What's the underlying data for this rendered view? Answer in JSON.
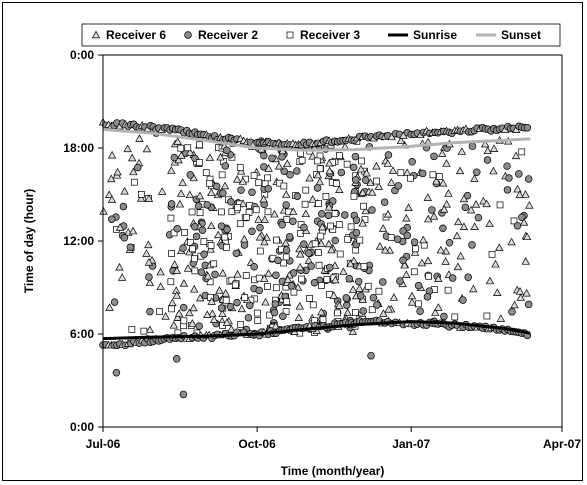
{
  "chart_data": {
    "type": "scatter",
    "title": "",
    "xlabel": "Time (month/year)",
    "ylabel": "Time of day (hour)",
    "x_ticks": [
      "Jul-06",
      "Oct-06",
      "Jan-07",
      "Apr-07"
    ],
    "x_tick_values": [
      0,
      92,
      184,
      274
    ],
    "y_ticks": [
      "0:00",
      "6:00",
      "12:00",
      "18:00",
      "0:00"
    ],
    "y_tick_values": [
      0,
      6,
      12,
      18,
      24
    ],
    "xlim": [
      0,
      274
    ],
    "ylim": [
      0,
      24
    ],
    "grid": false,
    "legend_position": "top",
    "series": [
      {
        "name": "Receiver 6",
        "marker": "triangle",
        "color": "#d9d9d9"
      },
      {
        "name": "Receiver 2",
        "marker": "circle",
        "color": "#8c8c8c"
      },
      {
        "name": "Receiver 3",
        "marker": "square",
        "color": "#ffffff"
      },
      {
        "name": "Sunrise",
        "marker": "line",
        "color": "#000000"
      },
      {
        "name": "Sunset",
        "marker": "line",
        "color": "#b3b3b3"
      }
    ],
    "sunrise": {
      "x": [
        0,
        30,
        60,
        92,
        120,
        150,
        184,
        210,
        240,
        255
      ],
      "y": [
        5.7,
        5.8,
        5.85,
        6.0,
        6.3,
        6.6,
        6.8,
        6.7,
        6.35,
        6.05
      ]
    },
    "sunset": {
      "x": [
        0,
        30,
        60,
        92,
        120,
        150,
        184,
        210,
        240,
        255
      ],
      "y": [
        19.2,
        18.95,
        18.5,
        18.0,
        17.85,
        17.9,
        18.1,
        18.35,
        18.5,
        18.6
      ]
    },
    "receiver_edge_points": {
      "upper": {
        "x": [
          0,
          10,
          20,
          30,
          40,
          50,
          60,
          70,
          80,
          92,
          100,
          110,
          120,
          130,
          140,
          150,
          160,
          170,
          184,
          195,
          205,
          215,
          225,
          235,
          245,
          255
        ],
        "y": [
          19.6,
          19.5,
          19.4,
          19.3,
          19.2,
          19.0,
          18.8,
          18.6,
          18.5,
          18.4,
          18.3,
          18.2,
          18.3,
          18.4,
          18.5,
          18.6,
          18.7,
          18.8,
          18.9,
          19.0,
          19.0,
          19.1,
          19.2,
          19.2,
          19.3,
          19.3
        ]
      },
      "lower": {
        "x": [
          0,
          10,
          20,
          30,
          40,
          50,
          60,
          70,
          80,
          92,
          100,
          110,
          120,
          130,
          140,
          150,
          160,
          170,
          184,
          195,
          205,
          215,
          225,
          235,
          245,
          255
        ],
        "y": [
          5.2,
          5.3,
          5.5,
          5.6,
          5.7,
          5.8,
          5.8,
          5.9,
          6.0,
          6.0,
          6.1,
          6.2,
          6.4,
          6.5,
          6.6,
          6.7,
          6.8,
          6.8,
          6.7,
          6.7,
          6.6,
          6.5,
          6.4,
          6.3,
          6.1,
          6.0
        ]
      }
    },
    "receiver_outliers": [
      {
        "series": "Receiver 2",
        "x": 8,
        "y": 3.5
      },
      {
        "series": "Receiver 2",
        "x": 48,
        "y": 2.1
      },
      {
        "series": "Receiver 2",
        "x": 44,
        "y": 4.4
      },
      {
        "series": "Receiver 2",
        "x": 160,
        "y": 4.6
      },
      {
        "series": "Receiver 3",
        "x": 210,
        "y": 7.1
      }
    ],
    "scatter_density": [
      {
        "x_range": [
          0,
          40
        ],
        "y_range": [
          6,
          19
        ],
        "count": 55,
        "mix": [
          0.65,
          0.2,
          0.15
        ]
      },
      {
        "x_range": [
          40,
          70
        ],
        "y_range": [
          6,
          18.5
        ],
        "count": 120,
        "mix": [
          0.45,
          0.3,
          0.25
        ]
      },
      {
        "x_range": [
          70,
          160
        ],
        "y_range": [
          6,
          18.5
        ],
        "count": 420,
        "mix": [
          0.3,
          0.35,
          0.35
        ]
      },
      {
        "x_range": [
          160,
          200
        ],
        "y_range": [
          6.5,
          18.5
        ],
        "count": 90,
        "mix": [
          0.55,
          0.3,
          0.15
        ]
      },
      {
        "x_range": [
          200,
          255
        ],
        "y_range": [
          7,
          18.5
        ],
        "count": 90,
        "mix": [
          0.7,
          0.22,
          0.08
        ]
      }
    ]
  }
}
